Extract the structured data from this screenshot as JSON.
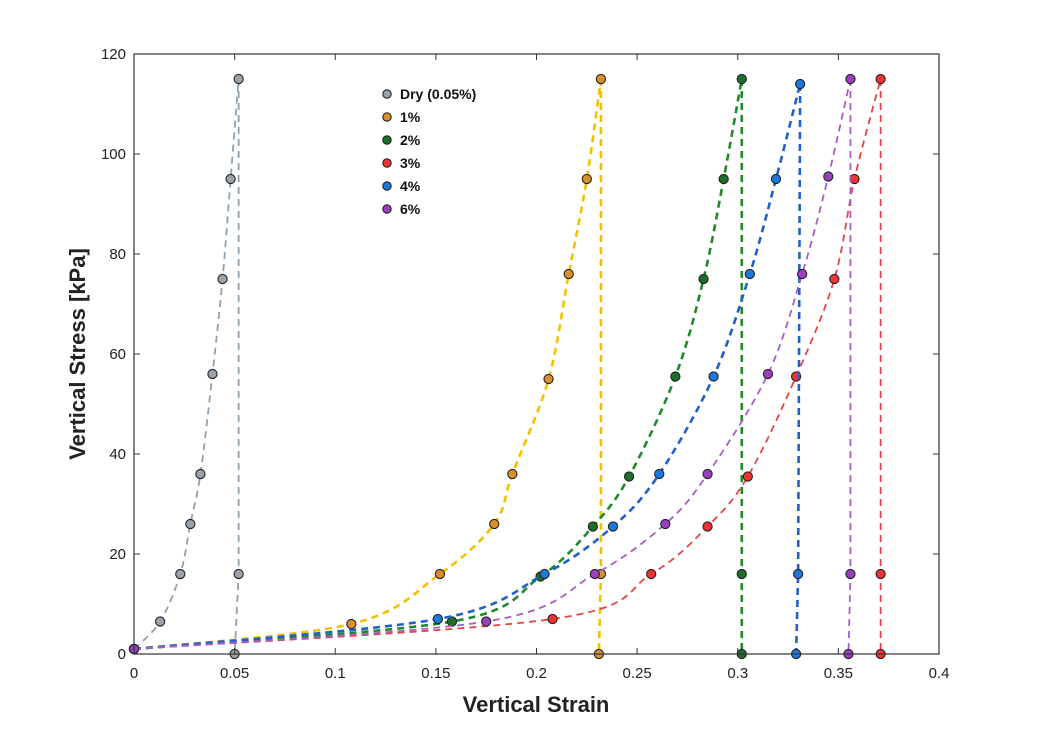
{
  "chart_data": {
    "type": "line",
    "xlabel": "Vertical Strain",
    "ylabel": "Vertical Stress [kPa]",
    "xlim": [
      0,
      0.4
    ],
    "ylim": [
      0,
      120
    ],
    "xticks": [
      0,
      0.05,
      0.1,
      0.15,
      0.2,
      0.25,
      0.3,
      0.35,
      0.4
    ],
    "xtick_labels": [
      "0",
      "0.05",
      "0.1",
      "0.15",
      "0.2",
      "0.25",
      "0.3",
      "0.35",
      "0.4"
    ],
    "yticks": [
      0,
      20,
      40,
      60,
      80,
      100,
      120
    ],
    "ytick_labels": [
      "0",
      "20",
      "40",
      "60",
      "80",
      "100",
      "120"
    ],
    "grid": false,
    "legend_position": "top-center",
    "series": [
      {
        "name": "Dry (0.05%)",
        "marker_color": "#9aa3ab",
        "line_color": "#8fa0ae",
        "points": [
          [
            0.0,
            1
          ],
          [
            0.013,
            6.5
          ],
          [
            0.023,
            16
          ],
          [
            0.028,
            26
          ],
          [
            0.033,
            36
          ],
          [
            0.039,
            56
          ],
          [
            0.044,
            75
          ],
          [
            0.048,
            95
          ],
          [
            0.052,
            115
          ],
          [
            0.052,
            16
          ],
          [
            0.05,
            0
          ]
        ]
      },
      {
        "name": "1%",
        "marker_color": "#d9902a",
        "line_color": "#f2c100",
        "points": [
          [
            0.0,
            1
          ],
          [
            0.108,
            6
          ],
          [
            0.152,
            16
          ],
          [
            0.179,
            26
          ],
          [
            0.188,
            36
          ],
          [
            0.206,
            55
          ],
          [
            0.216,
            76
          ],
          [
            0.225,
            95
          ],
          [
            0.232,
            115
          ],
          [
            0.232,
            16
          ],
          [
            0.231,
            0
          ]
        ]
      },
      {
        "name": "2%",
        "marker_color": "#1e6e2a",
        "line_color": "#1e8a2a",
        "points": [
          [
            0.0,
            1
          ],
          [
            0.158,
            6.5
          ],
          [
            0.202,
            15.5
          ],
          [
            0.228,
            25.5
          ],
          [
            0.246,
            35.5
          ],
          [
            0.269,
            55.5
          ],
          [
            0.283,
            75
          ],
          [
            0.293,
            95
          ],
          [
            0.302,
            115
          ],
          [
            0.302,
            16
          ],
          [
            0.302,
            0
          ]
        ]
      },
      {
        "name": "3%",
        "marker_color": "#ee3333",
        "line_color": "#e64444",
        "points": [
          [
            0.0,
            1
          ],
          [
            0.208,
            7
          ],
          [
            0.257,
            16
          ],
          [
            0.285,
            25.5
          ],
          [
            0.305,
            35.5
          ],
          [
            0.329,
            55.5
          ],
          [
            0.348,
            75
          ],
          [
            0.358,
            95
          ],
          [
            0.371,
            115
          ],
          [
            0.371,
            16
          ],
          [
            0.371,
            0
          ]
        ]
      },
      {
        "name": "4%",
        "marker_color": "#1e78dc",
        "line_color": "#1e60cc",
        "points": [
          [
            0.0,
            1
          ],
          [
            0.151,
            7
          ],
          [
            0.204,
            16
          ],
          [
            0.238,
            25.5
          ],
          [
            0.261,
            36
          ],
          [
            0.288,
            55.5
          ],
          [
            0.306,
            76
          ],
          [
            0.319,
            95
          ],
          [
            0.331,
            114
          ],
          [
            0.33,
            16
          ],
          [
            0.329,
            0
          ]
        ]
      },
      {
        "name": "6%",
        "marker_color": "#9b3fbe",
        "line_color": "#a55fc4",
        "points": [
          [
            0.0,
            1
          ],
          [
            0.175,
            6.5
          ],
          [
            0.229,
            16
          ],
          [
            0.264,
            26
          ],
          [
            0.285,
            36
          ],
          [
            0.315,
            56
          ],
          [
            0.332,
            76
          ],
          [
            0.345,
            95.5
          ],
          [
            0.356,
            115
          ],
          [
            0.356,
            16
          ],
          [
            0.355,
            0
          ]
        ]
      }
    ]
  }
}
